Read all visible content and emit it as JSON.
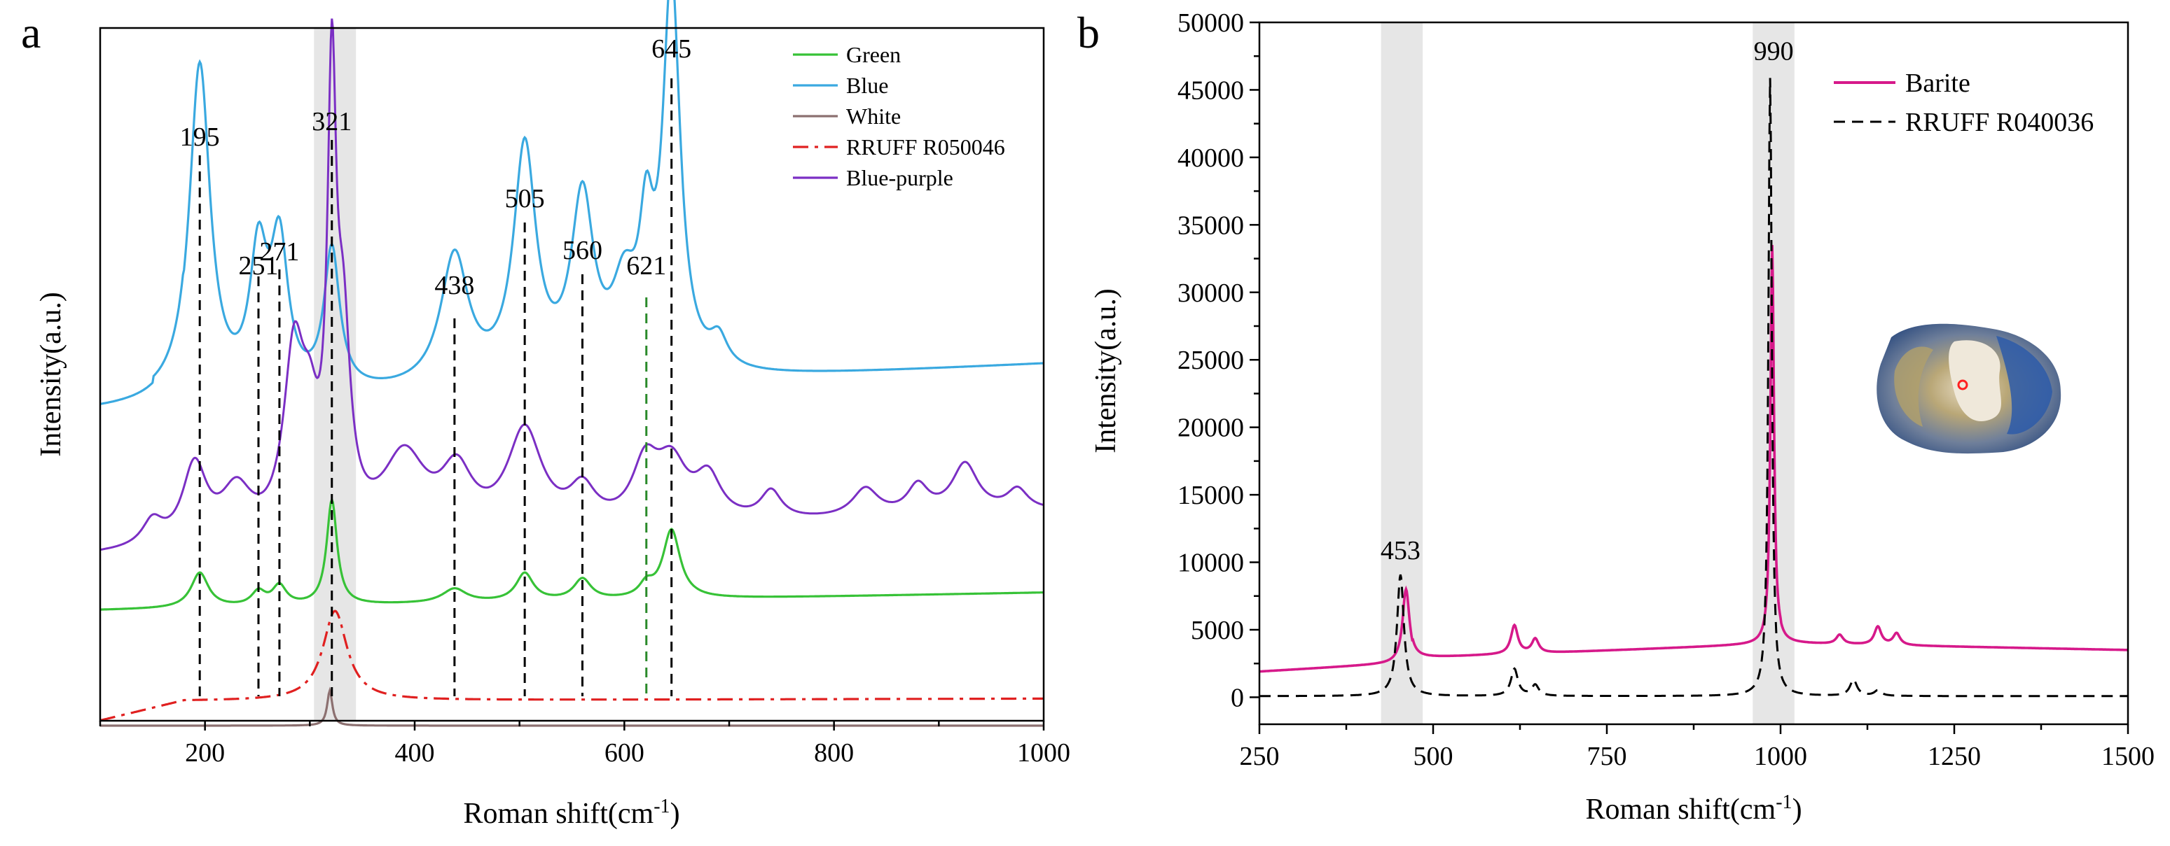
{
  "chart_data": [
    {
      "panel_label": "a",
      "type": "line",
      "xlabel": "Roman shift(cm",
      "xlabel_sup": "-1",
      "xlabel_end": ")",
      "ylabel": "Intensity(a.u.)",
      "xlim": [
        100,
        1000
      ],
      "xticks": [
        200,
        400,
        600,
        800,
        1000
      ],
      "highlight_band": [
        304,
        344
      ],
      "peaks": [
        195,
        251,
        271,
        321,
        438,
        505,
        560,
        621,
        645
      ],
      "series": [
        {
          "name": "Green",
          "color": "#37c237",
          "style": "solid"
        },
        {
          "name": "Blue",
          "color": "#3aa9e0",
          "style": "solid"
        },
        {
          "name": "White",
          "color": "#8c7070",
          "style": "solid"
        },
        {
          "name": "RRUFF R050046",
          "color": "#e02020",
          "style": "dashdot"
        },
        {
          "name": "Blue-purple",
          "color": "#7b2fc4",
          "style": "solid"
        }
      ]
    },
    {
      "panel_label": "b",
      "type": "line",
      "xlabel": "Roman shift(cm",
      "xlabel_sup": "-1",
      "xlabel_end": ")",
      "ylabel": "Intensity(a.u.)",
      "xlim": [
        250,
        1500
      ],
      "ylim": [
        -2000,
        50000
      ],
      "xticks": [
        250,
        500,
        750,
        1000,
        1250,
        1500
      ],
      "yticks": [
        0,
        5000,
        10000,
        15000,
        20000,
        25000,
        30000,
        35000,
        40000,
        45000,
        50000
      ],
      "highlight_bands": [
        [
          425,
          485
        ],
        [
          960,
          1020
        ]
      ],
      "peaks": [
        {
          "x": 453,
          "y": 9500
        },
        {
          "x": 990,
          "y": 46500
        }
      ],
      "series": [
        {
          "name": "Barite",
          "color": "#d6198a",
          "style": "solid"
        },
        {
          "name": "RRUFF R040036",
          "color": "#000000",
          "style": "dashed"
        }
      ],
      "barite_peaks": [
        {
          "x": 461,
          "y": 8000
        },
        {
          "x": 617,
          "y": 5300
        },
        {
          "x": 647,
          "y": 4300
        },
        {
          "x": 988,
          "y": 33500
        },
        {
          "x": 1085,
          "y": 4600
        },
        {
          "x": 1140,
          "y": 5200
        },
        {
          "x": 1167,
          "y": 4700
        }
      ],
      "rruff_peaks": [
        {
          "x": 453,
          "y": 9000
        },
        {
          "x": 617,
          "y": 2000
        },
        {
          "x": 647,
          "y": 800
        },
        {
          "x": 985,
          "y": 45800
        },
        {
          "x": 1105,
          "y": 1200
        },
        {
          "x": 1140,
          "y": 400
        }
      ]
    }
  ]
}
